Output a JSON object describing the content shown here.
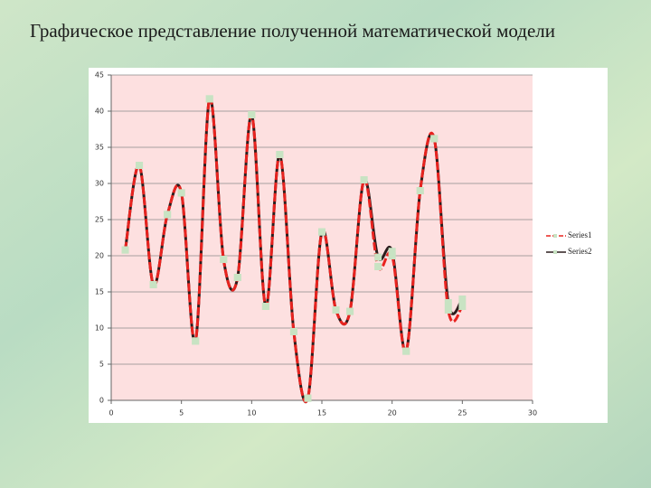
{
  "chart_data": {
    "type": "line",
    "title": "Графическое представление полученной математической модели",
    "x": [
      1,
      2,
      3,
      4,
      5,
      6,
      7,
      8,
      9,
      10,
      11,
      12,
      13,
      14,
      15,
      16,
      17,
      18,
      19,
      20,
      21,
      22,
      23,
      24,
      25
    ],
    "series": [
      {
        "name": "Series1",
        "color": "#e8231f",
        "dash": true,
        "values": [
          20.8,
          32.5,
          16,
          25.7,
          28.7,
          8.2,
          41.7,
          19.5,
          17,
          39.5,
          13,
          34,
          9.5,
          0.3,
          23.3,
          12.5,
          12.3,
          30.5,
          18.5,
          20,
          6.8,
          29,
          36.2,
          12.5,
          13
        ]
      },
      {
        "name": "Series2",
        "color": "#2b1d1d",
        "dash": false,
        "values": [
          20.8,
          32.5,
          16,
          25.7,
          28.7,
          8.2,
          41.7,
          19.5,
          17,
          39.5,
          13,
          34,
          9.5,
          0.3,
          23.3,
          12.5,
          12.3,
          30.5,
          19.8,
          20.6,
          6.8,
          29,
          36.2,
          13.5,
          14
        ]
      }
    ],
    "marker_color": "#c8e3c3",
    "xlim": [
      0,
      30
    ],
    "xticks": [
      0,
      5,
      10,
      15,
      20,
      25,
      30
    ],
    "ylim": [
      0,
      45
    ],
    "yticks": [
      0,
      5,
      10,
      15,
      20,
      25,
      30,
      35,
      40,
      45
    ],
    "grid": true,
    "legend": "right"
  }
}
